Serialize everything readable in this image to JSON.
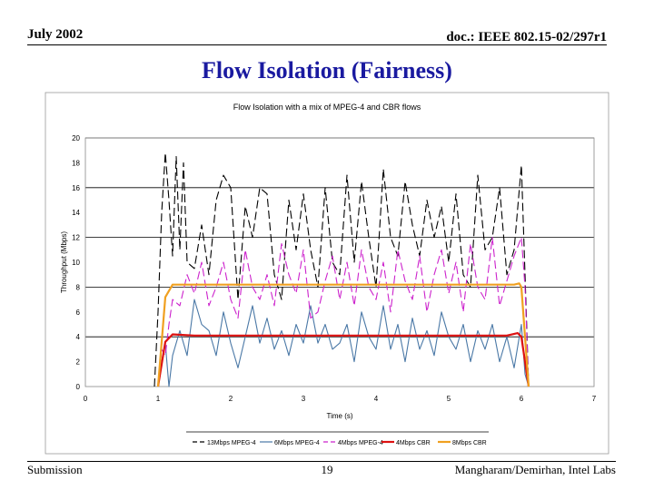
{
  "slide": {
    "date": "July 2002",
    "doc_id": "doc.: IEEE 802.15-02/297r1",
    "title": "Flow Isolation (Fairness)",
    "footer_left": "Submission",
    "page_number": "19",
    "footer_right": "Mangharam/Demirhan, Intel Labs"
  },
  "chart_data": {
    "type": "line",
    "title": "Flow Isolation with a mix of MPEG-4 and CBR flows",
    "xlabel": "Time (s)",
    "ylabel": "Throughput (Mbps)",
    "xlim": [
      0,
      7
    ],
    "ylim": [
      0,
      20
    ],
    "x_ticks": [
      "0",
      "1",
      "2",
      "3",
      "4",
      "5",
      "6",
      "7"
    ],
    "y_ticks": [
      "0",
      "2",
      "4",
      "6",
      "8",
      "10",
      "12",
      "14",
      "16",
      "18",
      "20"
    ],
    "gridlines": "horizontal at 4, 8, 12, 16, 20",
    "legend_position": "bottom",
    "series": [
      {
        "name": "13Mbps MPEG-4",
        "color": "#000000",
        "style": "dashed",
        "x": [
          0.95,
          1.0,
          1.05,
          1.1,
          1.15,
          1.2,
          1.25,
          1.3,
          1.35,
          1.4,
          1.5,
          1.6,
          1.7,
          1.8,
          1.9,
          2.0,
          2.1,
          2.2,
          2.3,
          2.4,
          2.5,
          2.6,
          2.7,
          2.8,
          2.9,
          3.0,
          3.1,
          3.2,
          3.3,
          3.4,
          3.5,
          3.6,
          3.7,
          3.8,
          3.9,
          4.0,
          4.1,
          4.2,
          4.3,
          4.4,
          4.5,
          4.6,
          4.7,
          4.8,
          4.9,
          5.0,
          5.1,
          5.2,
          5.3,
          5.4,
          5.5,
          5.6,
          5.7,
          5.8,
          5.9,
          6.0,
          6.05,
          6.1
        ],
        "y": [
          0,
          6,
          14,
          18.8,
          15,
          10.5,
          18.5,
          11,
          18,
          10,
          9.5,
          13,
          9,
          15,
          17,
          16,
          7,
          14.5,
          12,
          16,
          15.5,
          9,
          7,
          15,
          11,
          15.5,
          11,
          8,
          16,
          10,
          9,
          17,
          10,
          16.5,
          12,
          8,
          17.5,
          12,
          10.5,
          16.5,
          13,
          10.5,
          15,
          12,
          14.5,
          10,
          15.5,
          9,
          8,
          17,
          11,
          12,
          16,
          9,
          11,
          17.8,
          9,
          0
        ]
      },
      {
        "name": "6Mbps MPEG-4",
        "color": "#4a78a6",
        "style": "solid",
        "x": [
          1.0,
          1.05,
          1.1,
          1.15,
          1.2,
          1.3,
          1.4,
          1.5,
          1.6,
          1.7,
          1.8,
          1.9,
          2.0,
          2.1,
          2.2,
          2.3,
          2.4,
          2.5,
          2.6,
          2.7,
          2.8,
          2.9,
          3.0,
          3.1,
          3.2,
          3.3,
          3.4,
          3.5,
          3.6,
          3.7,
          3.8,
          3.9,
          4.0,
          4.1,
          4.2,
          4.3,
          4.4,
          4.5,
          4.6,
          4.7,
          4.8,
          4.9,
          5.0,
          5.1,
          5.2,
          5.3,
          5.4,
          5.5,
          5.6,
          5.7,
          5.8,
          5.9,
          6.0,
          6.05,
          6.1
        ],
        "y": [
          0,
          2,
          3.5,
          0,
          2.5,
          4.5,
          2.5,
          7,
          5,
          4.5,
          2.5,
          6,
          3.5,
          1.5,
          4,
          6.5,
          3.5,
          5.5,
          3,
          4.5,
          2.5,
          5,
          3.5,
          6.5,
          3.5,
          5,
          3,
          3.5,
          5,
          2,
          6,
          4,
          3,
          6.5,
          3,
          5,
          2,
          5.5,
          3,
          4.5,
          2.5,
          6,
          4,
          3,
          5,
          2,
          4.5,
          3,
          5,
          2,
          4,
          1.5,
          5,
          1,
          0
        ]
      },
      {
        "name": "4Mbps MPEG-4",
        "color": "#cc22cc",
        "style": "dashed",
        "x": [
          1.0,
          1.05,
          1.1,
          1.15,
          1.2,
          1.3,
          1.4,
          1.5,
          1.6,
          1.7,
          1.8,
          1.9,
          2.0,
          2.1,
          2.2,
          2.3,
          2.4,
          2.5,
          2.6,
          2.7,
          2.8,
          2.9,
          3.0,
          3.1,
          3.2,
          3.3,
          3.4,
          3.5,
          3.6,
          3.7,
          3.8,
          3.9,
          4.0,
          4.1,
          4.2,
          4.3,
          4.4,
          4.5,
          4.6,
          4.7,
          4.8,
          4.9,
          5.0,
          5.1,
          5.2,
          5.3,
          5.4,
          5.5,
          5.6,
          5.7,
          5.8,
          5.9,
          6.0,
          6.05,
          6.1
        ],
        "y": [
          0,
          3,
          2.5,
          5,
          7,
          6.5,
          9,
          7.5,
          10,
          6.5,
          8,
          10,
          7,
          5.5,
          11,
          8,
          7,
          9,
          6.5,
          11.5,
          9,
          7.5,
          11,
          5.5,
          6,
          8.5,
          10.5,
          7,
          10,
          6.5,
          11,
          8,
          7,
          10,
          6,
          11,
          8.5,
          7,
          10.5,
          6,
          9,
          11,
          7.5,
          10,
          6,
          11.5,
          8,
          7,
          12,
          6.5,
          8.5,
          10.5,
          12,
          8,
          0
        ]
      },
      {
        "name": "4Mbps CBR",
        "color": "#dd1111",
        "style": "solid",
        "x": [
          1.0,
          1.1,
          1.2,
          1.5,
          2.0,
          3.0,
          4.0,
          5.0,
          5.8,
          5.95,
          6.0,
          6.1
        ],
        "y": [
          0,
          3.6,
          4.2,
          4.1,
          4.1,
          4.1,
          4.1,
          4.1,
          4.1,
          4.3,
          4.0,
          0
        ]
      },
      {
        "name": "8Mbps CBR",
        "color": "#f0a020",
        "style": "solid",
        "x": [
          1.0,
          1.1,
          1.2,
          2.0,
          3.0,
          4.0,
          5.0,
          5.9,
          5.97,
          6.0,
          6.1
        ],
        "y": [
          0,
          7.2,
          8.2,
          8.2,
          8.2,
          8.2,
          8.2,
          8.2,
          8.3,
          8.0,
          0
        ]
      }
    ]
  }
}
